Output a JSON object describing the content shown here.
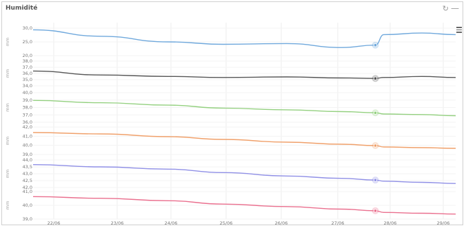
{
  "header": {
    "title": "Humidité",
    "refresh_icon": "refresh-icon",
    "minimize_icon": "minus-icon",
    "menu_icon": "hamburger-menu-icon"
  },
  "chart_data": [
    {
      "type": "line",
      "ylabel": "mm",
      "color": "#6fa8dc",
      "yticks": [
        "30,0",
        "25,0",
        "20,0"
      ],
      "ylim": [
        17,
        34
      ],
      "x": [
        "22/06",
        "23/06",
        "24/06",
        "25/06",
        "26/06",
        "27/06",
        "27/06 18h",
        "28/06",
        "29/06",
        "29/06 18h"
      ],
      "values": [
        33,
        29,
        25.5,
        24,
        24.5,
        22,
        23.5,
        30,
        31,
        30
      ],
      "highlight_index": 6
    },
    {
      "type": "line",
      "ylabel": "mm",
      "color": "#555555",
      "yticks": [
        "38,0",
        "37,0",
        "36,0",
        "35,0",
        "34,0"
      ],
      "ylim": [
        33.5,
        38.5
      ],
      "x": [
        "22/06",
        "23/06",
        "24/06",
        "25/06",
        "26/06",
        "27/06",
        "27/06 18h",
        "28/06",
        "29/06",
        "29/06 18h"
      ],
      "values": [
        36.5,
        35.7,
        35.4,
        35.2,
        35.3,
        35.1,
        35.0,
        35.2,
        35.4,
        35.2
      ],
      "highlight_index": 6
    },
    {
      "type": "line",
      "ylabel": "mm",
      "color": "#93d07f",
      "yticks": [
        "40,0",
        "39,0",
        "38,0",
        "37,0",
        "36,0"
      ],
      "ylim": [
        35.5,
        40.5
      ],
      "x": [
        "22/06",
        "23/06",
        "24/06",
        "25/06",
        "26/06",
        "27/06",
        "27/06 18h",
        "28/06",
        "29/06",
        "29/06 18h"
      ],
      "values": [
        39.2,
        38.8,
        38.4,
        37.9,
        37.6,
        37.3,
        37.1,
        36.9,
        36.8,
        36.6
      ],
      "highlight_index": 6
    },
    {
      "type": "line",
      "ylabel": "mm",
      "color": "#f0a06a",
      "yticks": [
        "42,0",
        "41,0",
        "40,0",
        "39,0"
      ],
      "ylim": [
        38.5,
        42.5
      ],
      "x": [
        "22/06",
        "23/06",
        "24/06",
        "25/06",
        "26/06",
        "27/06",
        "27/06 18h",
        "28/06",
        "29/06",
        "29/06 18h"
      ],
      "values": [
        41.7,
        41.5,
        41.1,
        40.7,
        40.3,
        40.0,
        39.8,
        39.6,
        39.5,
        39.4
      ],
      "highlight_index": 6
    },
    {
      "type": "line",
      "ylabel": "mm",
      "color": "#8f8fe6",
      "yticks": [
        "44,0",
        "43,5",
        "43,0",
        "42,5",
        "42,0"
      ],
      "ylim": [
        41.8,
        44.2
      ],
      "x": [
        "22/06",
        "23/06",
        "24/06",
        "25/06",
        "26/06",
        "27/06",
        "27/06 18h",
        "28/06",
        "29/06",
        "29/06 18h"
      ],
      "values": [
        43.8,
        43.6,
        43.4,
        43.1,
        42.8,
        42.6,
        42.45,
        42.35,
        42.25,
        42.15
      ],
      "highlight_index": 6
    },
    {
      "type": "line",
      "ylabel": "mm",
      "color": "#ea6f8e",
      "yticks": [
        "41,0",
        "40,0",
        "39,0"
      ],
      "ylim": [
        38.5,
        41.8
      ],
      "x": [
        "22/06",
        "23/06",
        "24/06",
        "25/06",
        "26/06",
        "27/06",
        "27/06 18h",
        "28/06",
        "29/06",
        "29/06 18h"
      ],
      "values": [
        41.2,
        41.0,
        40.7,
        40.3,
        40.0,
        39.7,
        39.5,
        39.3,
        39.2,
        39.1
      ],
      "highlight_index": 6
    }
  ],
  "xaxis": {
    "ticks": [
      "22/06",
      "23/06",
      "24/06",
      "25/06",
      "26/06",
      "27/06",
      "28/06",
      "29/06"
    ]
  }
}
